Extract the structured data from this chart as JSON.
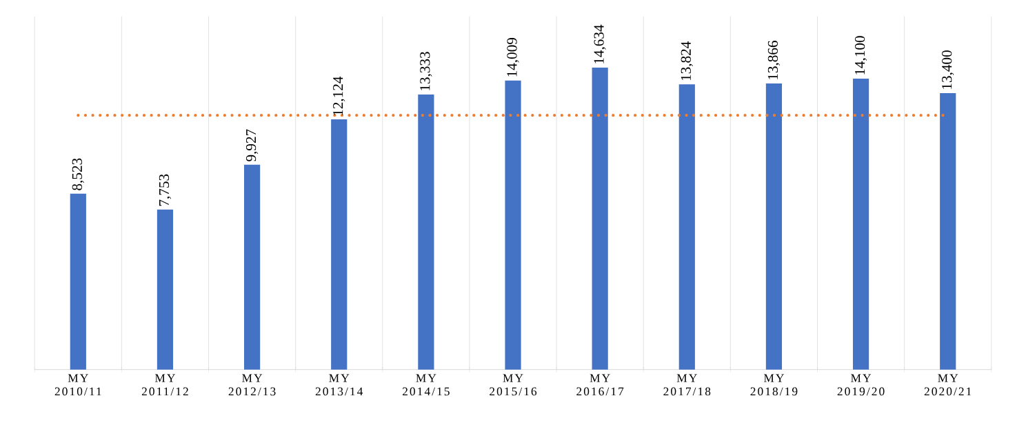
{
  "chart_data": {
    "type": "bar",
    "categories": [
      "MY 2010/11",
      "MY 2011/12",
      "MY 2012/13",
      "MY 2013/14",
      "MY 2014/15",
      "MY 2015/16",
      "MY 2016/17",
      "MY 2017/18",
      "MY 2018/19",
      "MY 2019/20",
      "MY 2020/21"
    ],
    "values": [
      8523,
      7753,
      9927,
      12124,
      13333,
      14009,
      14634,
      13824,
      13866,
      14100,
      13400
    ],
    "value_labels": [
      "8,523",
      "7,753",
      "9,927",
      "12,124",
      "13,333",
      "14,009",
      "14,634",
      "13,824",
      "13,866",
      "14,100",
      "13,400"
    ],
    "color": "#4472c4",
    "ref_lines": [
      {
        "axis": "y",
        "value": 12318,
        "color": "#ed7d31",
        "line_style": "dotted"
      }
    ],
    "grid": "x"
  }
}
